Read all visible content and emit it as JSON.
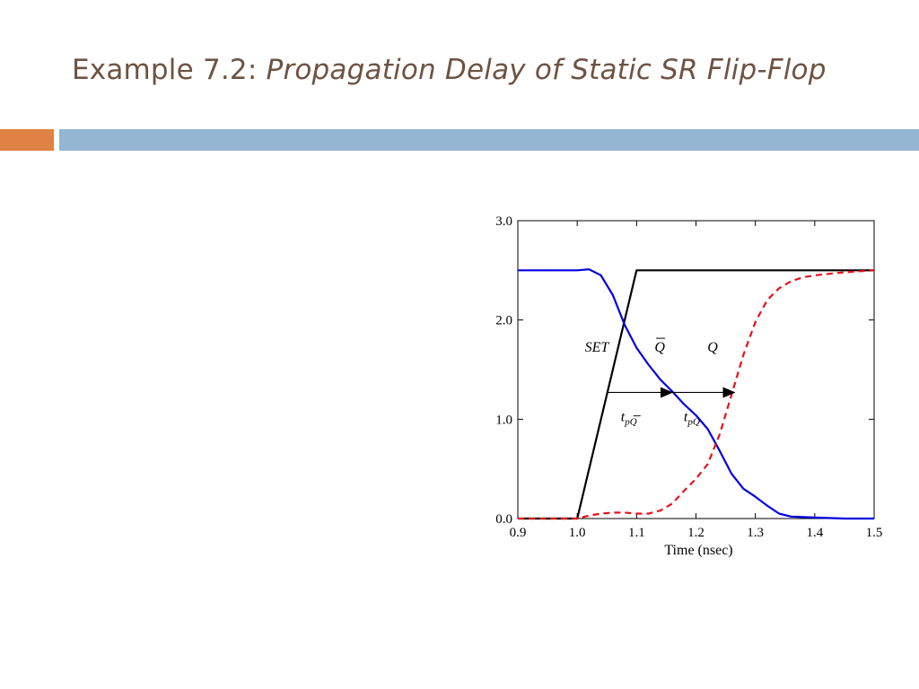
{
  "slide": {
    "title_prefix": "Example 7.2: ",
    "title_main": "Propagation Delay of  Static SR Flip-Flop"
  },
  "colors": {
    "title": "#6e5342",
    "accent_left": "#df8244",
    "accent_right": "#94b6d2",
    "set": "#000000",
    "qbar": "#0000e0",
    "q": "#e8101a"
  },
  "chart_data": {
    "type": "line",
    "title": "",
    "xlabel": "Time (nsec)",
    "ylabel": "",
    "xlim": [
      0.9,
      1.5
    ],
    "ylim": [
      0.0,
      3.0
    ],
    "xticks": [
      0.9,
      1.0,
      1.1,
      1.2,
      1.3,
      1.4,
      1.5
    ],
    "xtick_labels": [
      "0.9",
      "1.0",
      "1.1",
      "1.2",
      "1.3",
      "1.4",
      "1.5"
    ],
    "yticks": [
      0.0,
      1.0,
      2.0,
      3.0
    ],
    "ytick_labels": [
      "0.0",
      "1.0",
      "2.0",
      "3.0"
    ],
    "grid": false,
    "series": [
      {
        "name": "SET",
        "style": "solid",
        "color": "#000000",
        "x": [
          0.9,
          1.0,
          1.1,
          1.5
        ],
        "y": [
          0.0,
          0.0,
          2.5,
          2.5
        ]
      },
      {
        "name": "Q̄",
        "style": "solid",
        "color": "#0000e0",
        "x": [
          0.9,
          1.0,
          1.02,
          1.04,
          1.06,
          1.08,
          1.1,
          1.12,
          1.14,
          1.16,
          1.18,
          1.2,
          1.22,
          1.24,
          1.26,
          1.28,
          1.3,
          1.32,
          1.34,
          1.36,
          1.4,
          1.45,
          1.5
        ],
        "y": [
          2.5,
          2.5,
          2.51,
          2.45,
          2.25,
          1.95,
          1.72,
          1.55,
          1.4,
          1.28,
          1.15,
          1.04,
          0.9,
          0.68,
          0.45,
          0.3,
          0.22,
          0.13,
          0.05,
          0.02,
          0.01,
          0.0,
          0.0
        ]
      },
      {
        "name": "Q",
        "style": "dashed",
        "color": "#e8101a",
        "x": [
          0.9,
          1.0,
          1.02,
          1.04,
          1.06,
          1.08,
          1.1,
          1.12,
          1.14,
          1.16,
          1.18,
          1.2,
          1.22,
          1.24,
          1.26,
          1.28,
          1.3,
          1.32,
          1.34,
          1.36,
          1.38,
          1.4,
          1.45,
          1.5
        ],
        "y": [
          0.0,
          0.0,
          0.03,
          0.05,
          0.06,
          0.06,
          0.05,
          0.05,
          0.08,
          0.15,
          0.28,
          0.4,
          0.55,
          0.85,
          1.25,
          1.65,
          1.98,
          2.2,
          2.32,
          2.39,
          2.43,
          2.45,
          2.48,
          2.5
        ]
      }
    ],
    "annotations": [
      {
        "name": "label-set",
        "text": "SET",
        "x": 1.033,
        "y": 1.68,
        "anchor": "middle"
      },
      {
        "name": "label-qbar",
        "text": "Q",
        "overbar": true,
        "x": 1.139,
        "y": 1.68,
        "anchor": "middle"
      },
      {
        "name": "label-q",
        "text": "Q",
        "x": 1.228,
        "y": 1.68,
        "anchor": "middle"
      },
      {
        "name": "label-tpqbar",
        "text": "t",
        "sub": "pQ",
        "sub_overbar": true,
        "x": 1.087,
        "y": 0.98,
        "anchor": "middle"
      },
      {
        "name": "label-tpq",
        "text": "t",
        "sub": "pQ",
        "x": 1.193,
        "y": 0.98,
        "anchor": "middle"
      }
    ],
    "arrows": [
      {
        "name": "arrow-tpqbar",
        "x1": 1.052,
        "x2": 1.16,
        "y": 1.27
      },
      {
        "name": "arrow-tpq",
        "x1": 1.16,
        "x2": 1.265,
        "y": 1.27
      }
    ]
  }
}
